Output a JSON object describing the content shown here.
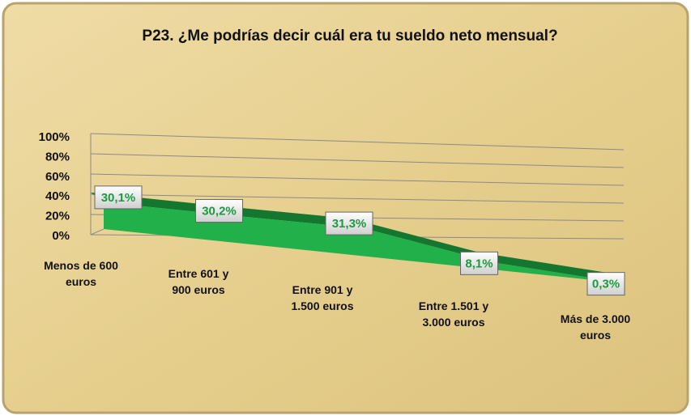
{
  "chart_data": {
    "type": "area",
    "title": "P23. ¿Me podrías decir cuál era tu sueldo neto mensual?",
    "categories": [
      "Menos de 600 euros",
      "Entre 601 y 900 euros",
      "Entre 901 y 1.500 euros",
      "Entre 1.501 y 3.000 euros",
      "Más de 3.000 euros"
    ],
    "values": [
      30.1,
      30.2,
      31.3,
      8.1,
      0.3
    ],
    "value_labels": [
      "30,1%",
      "30,2%",
      "31,3%",
      "8,1%",
      "0,3%"
    ],
    "color": "#22b04b",
    "ylim": [
      0,
      100
    ],
    "yticks": [
      {
        "value": 0,
        "label": "0%"
      },
      {
        "value": 20,
        "label": "20%"
      },
      {
        "value": 40,
        "label": "40%"
      },
      {
        "value": 60,
        "label": "60%"
      },
      {
        "value": 80,
        "label": "80%"
      },
      {
        "value": 100,
        "label": "100%"
      }
    ],
    "grid": true
  }
}
